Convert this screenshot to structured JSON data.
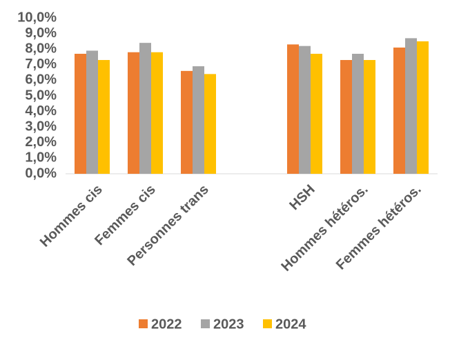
{
  "chart_data": {
    "type": "bar",
    "categories": [
      "Hommes cis",
      "Femmes cis",
      "Personnes trans",
      null,
      "HSH",
      "Hommes hétéros.",
      "Femmes hétéros."
    ],
    "series": [
      {
        "name": "2022",
        "color": "#ed7d31",
        "values": [
          7.7,
          7.8,
          6.6,
          null,
          8.3,
          7.3,
          8.1
        ]
      },
      {
        "name": "2023",
        "color": "#a5a5a5",
        "values": [
          7.9,
          8.4,
          6.9,
          null,
          8.2,
          7.7,
          8.7
        ]
      },
      {
        "name": "2024",
        "color": "#ffc000",
        "values": [
          7.3,
          7.8,
          6.4,
          null,
          7.7,
          7.3,
          8.5
        ]
      }
    ],
    "ylim": [
      0,
      10
    ],
    "yticks": [
      {
        "value": 0,
        "label": "0,0%"
      },
      {
        "value": 1,
        "label": "1,0%"
      },
      {
        "value": 2,
        "label": "2,0%"
      },
      {
        "value": 3,
        "label": "3,0%"
      },
      {
        "value": 4,
        "label": "4,0%"
      },
      {
        "value": 5,
        "label": "5,0%"
      },
      {
        "value": 6,
        "label": "6,0%"
      },
      {
        "value": 7,
        "label": "7,0%"
      },
      {
        "value": 8,
        "label": "8,0%"
      },
      {
        "value": 9,
        "label": "9,0%"
      },
      {
        "value": 10,
        "label": "10,0%"
      }
    ],
    "grid": false,
    "legend": "bottom"
  }
}
